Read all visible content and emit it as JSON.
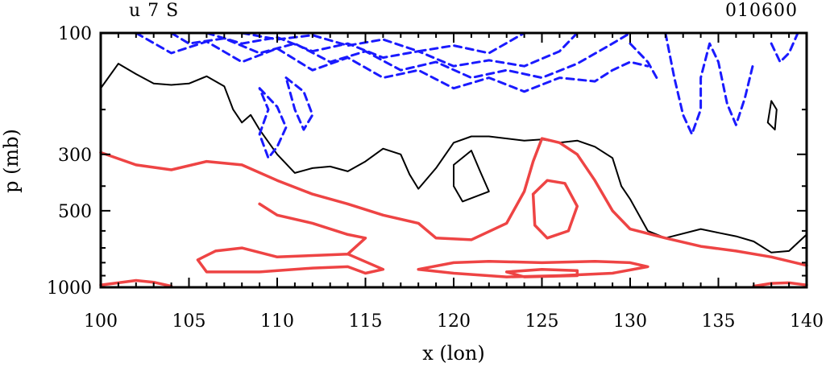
{
  "chart_data": {
    "type": "contour",
    "title_left": "u 7 S",
    "title_right": "010600",
    "xlabel": "x (lon)",
    "ylabel": "p (mb)",
    "xlim": [
      100,
      140
    ],
    "ylim": [
      1000,
      100
    ],
    "yscale": "log",
    "x_ticks": [
      100,
      105,
      110,
      115,
      120,
      125,
      130,
      135,
      140
    ],
    "y_ticks": [
      100,
      300,
      500,
      1000
    ],
    "grid": false,
    "legend": "none",
    "contour_styles": {
      "negative": {
        "color": "#1a1aff",
        "dash": "dashed"
      },
      "zero": {
        "color": "#000000",
        "dash": "solid"
      },
      "positive": {
        "color": "#ee4444",
        "dash": "solid"
      }
    },
    "contours": [
      {
        "level": "zero",
        "points": [
          [
            100,
            165
          ],
          [
            101,
            132
          ],
          [
            102,
            145
          ],
          [
            103,
            158
          ],
          [
            104,
            160
          ],
          [
            105,
            158
          ],
          [
            106,
            148
          ],
          [
            107,
            162
          ],
          [
            107.5,
            200
          ],
          [
            108,
            225
          ],
          [
            108.5,
            210
          ],
          [
            109,
            240
          ],
          [
            110,
            300
          ],
          [
            111,
            355
          ],
          [
            112,
            340
          ],
          [
            113,
            335
          ],
          [
            114,
            350
          ],
          [
            115,
            320
          ],
          [
            116,
            285
          ],
          [
            117,
            300
          ],
          [
            117.5,
            360
          ],
          [
            118,
            410
          ],
          [
            119,
            340
          ],
          [
            120,
            270
          ],
          [
            121,
            255
          ],
          [
            122,
            255
          ],
          [
            123,
            260
          ],
          [
            124,
            265
          ],
          [
            125,
            262
          ],
          [
            126,
            270
          ],
          [
            127,
            265
          ],
          [
            128,
            280
          ],
          [
            129,
            310
          ],
          [
            129.5,
            400
          ],
          [
            130,
            450
          ],
          [
            131,
            600
          ],
          [
            132,
            640
          ],
          [
            134,
            590
          ],
          [
            135,
            610
          ],
          [
            136,
            630
          ],
          [
            137,
            660
          ],
          [
            138,
            730
          ],
          [
            139,
            720
          ],
          [
            140,
            620
          ]
        ]
      },
      {
        "level": "zero",
        "points": [
          [
            120,
            330
          ],
          [
            121,
            290
          ],
          [
            121.5,
            350
          ],
          [
            122,
            420
          ],
          [
            120.5,
            460
          ],
          [
            120,
            400
          ],
          [
            120,
            330
          ]
        ]
      },
      {
        "level": "zero",
        "points": [
          [
            137.8,
            225
          ],
          [
            138,
            185
          ],
          [
            138.3,
            200
          ],
          [
            138.2,
            240
          ],
          [
            137.8,
            225
          ]
        ]
      },
      {
        "level": "positive",
        "points": [
          [
            100,
            295
          ],
          [
            102,
            330
          ],
          [
            104,
            345
          ],
          [
            106,
            320
          ],
          [
            108,
            330
          ],
          [
            110,
            380
          ],
          [
            112,
            430
          ],
          [
            114,
            470
          ],
          [
            116,
            520
          ],
          [
            118,
            560
          ],
          [
            119,
            640
          ],
          [
            121,
            650
          ],
          [
            123,
            560
          ],
          [
            124,
            420
          ],
          [
            124.5,
            320
          ],
          [
            125,
            260
          ],
          [
            126,
            270
          ],
          [
            127,
            300
          ],
          [
            128,
            380
          ],
          [
            129,
            500
          ],
          [
            130,
            590
          ],
          [
            132,
            640
          ],
          [
            134,
            690
          ],
          [
            136,
            720
          ],
          [
            138,
            760
          ],
          [
            140,
            820
          ]
        ]
      },
      {
        "level": "positive",
        "points": [
          [
            124.5,
            430
          ],
          [
            125.3,
            380
          ],
          [
            126.3,
            390
          ],
          [
            127,
            480
          ],
          [
            126.5,
            600
          ],
          [
            125.3,
            640
          ],
          [
            124.6,
            570
          ],
          [
            124.5,
            430
          ]
        ]
      },
      {
        "level": "positive",
        "points": [
          [
            109,
            470
          ],
          [
            110,
            520
          ],
          [
            112,
            560
          ],
          [
            114,
            620
          ],
          [
            115,
            640
          ],
          [
            114,
            740
          ],
          [
            112,
            750
          ],
          [
            110,
            760
          ],
          [
            108,
            700
          ],
          [
            106.5,
            720
          ],
          [
            105.5,
            780
          ],
          [
            106,
            870
          ],
          [
            109,
            870
          ],
          [
            112,
            840
          ],
          [
            114,
            830
          ],
          [
            115,
            880
          ],
          [
            116,
            850
          ],
          [
            114,
            740
          ],
          [
            112,
            750
          ]
        ]
      },
      {
        "level": "positive",
        "points": [
          [
            118,
            850
          ],
          [
            120,
            800
          ],
          [
            122,
            790
          ],
          [
            125,
            800
          ],
          [
            128,
            790
          ],
          [
            130,
            800
          ],
          [
            131,
            830
          ],
          [
            129,
            880
          ],
          [
            126,
            900
          ],
          [
            123,
            910
          ],
          [
            120,
            880
          ],
          [
            118,
            850
          ]
        ]
      },
      {
        "level": "positive",
        "points": [
          [
            123,
            870
          ],
          [
            125,
            850
          ],
          [
            127,
            860
          ],
          [
            127,
            900
          ],
          [
            124,
            910
          ],
          [
            123,
            870
          ]
        ]
      },
      {
        "level": "positive",
        "points": [
          [
            100,
            980
          ],
          [
            101,
            960
          ],
          [
            102,
            940
          ],
          [
            103,
            955
          ],
          [
            104,
            990
          ]
        ]
      },
      {
        "level": "positive",
        "points": [
          [
            137,
            990
          ],
          [
            138,
            965
          ],
          [
            139,
            960
          ],
          [
            140,
            980
          ]
        ]
      },
      {
        "level": "negative",
        "points": [
          [
            102,
            100
          ],
          [
            104,
            120
          ],
          [
            106,
            108
          ],
          [
            108,
            130
          ],
          [
            110,
            115
          ],
          [
            112,
            140
          ],
          [
            114,
            125
          ],
          [
            116,
            150
          ],
          [
            118,
            140
          ],
          [
            120,
            165
          ],
          [
            122,
            150
          ],
          [
            124,
            170
          ],
          [
            126,
            150
          ],
          [
            128,
            155
          ],
          [
            129,
            140
          ],
          [
            130,
            130
          ],
          [
            131,
            135
          ]
        ]
      },
      {
        "level": "negative",
        "points": [
          [
            104,
            100
          ],
          [
            105,
            110
          ],
          [
            107,
            105
          ],
          [
            109,
            120
          ],
          [
            111,
            110
          ],
          [
            113,
            130
          ],
          [
            115,
            118
          ],
          [
            117,
            140
          ],
          [
            119,
            130
          ],
          [
            121,
            150
          ],
          [
            123,
            140
          ],
          [
            125,
            150
          ],
          [
            127,
            132
          ],
          [
            129,
            110
          ],
          [
            130,
            100
          ]
        ]
      },
      {
        "level": "negative",
        "points": [
          [
            106,
            100
          ],
          [
            108,
            110
          ],
          [
            110,
            104
          ],
          [
            112,
            118
          ],
          [
            114,
            110
          ],
          [
            116,
            125
          ],
          [
            118,
            118
          ],
          [
            120,
            135
          ],
          [
            122,
            128
          ],
          [
            124,
            135
          ],
          [
            126,
            118
          ],
          [
            127,
            100
          ]
        ]
      },
      {
        "level": "negative",
        "points": [
          [
            108,
            100
          ],
          [
            110,
            106
          ],
          [
            112,
            102
          ],
          [
            114,
            112
          ],
          [
            116,
            106
          ],
          [
            118,
            118
          ],
          [
            120,
            112
          ],
          [
            122,
            120
          ],
          [
            124,
            100
          ]
        ]
      },
      {
        "level": "negative",
        "points": [
          [
            109,
            165
          ],
          [
            110,
            195
          ],
          [
            110.5,
            235
          ],
          [
            110,
            280
          ],
          [
            109.5,
            310
          ],
          [
            109,
            250
          ],
          [
            109.5,
            200
          ],
          [
            109,
            165
          ]
        ]
      },
      {
        "level": "negative",
        "points": [
          [
            110.5,
            150
          ],
          [
            111.5,
            170
          ],
          [
            112,
            210
          ],
          [
            111.5,
            240
          ],
          [
            111,
            200
          ],
          [
            110.5,
            150
          ]
        ]
      },
      {
        "level": "negative",
        "points": [
          [
            132,
            100
          ],
          [
            132.5,
            150
          ],
          [
            133,
            210
          ],
          [
            133.5,
            250
          ],
          [
            134,
            200
          ],
          [
            134,
            150
          ],
          [
            134.5,
            110
          ],
          [
            135,
            130
          ],
          [
            135.5,
            190
          ],
          [
            136,
            230
          ],
          [
            136.5,
            180
          ],
          [
            137,
            130
          ]
        ]
      },
      {
        "level": "negative",
        "points": [
          [
            130,
            110
          ],
          [
            131,
            130
          ],
          [
            131.5,
            150
          ]
        ]
      },
      {
        "level": "negative",
        "points": [
          [
            138,
            110
          ],
          [
            138.5,
            130
          ],
          [
            139,
            120
          ],
          [
            139.5,
            100
          ]
        ]
      }
    ]
  }
}
